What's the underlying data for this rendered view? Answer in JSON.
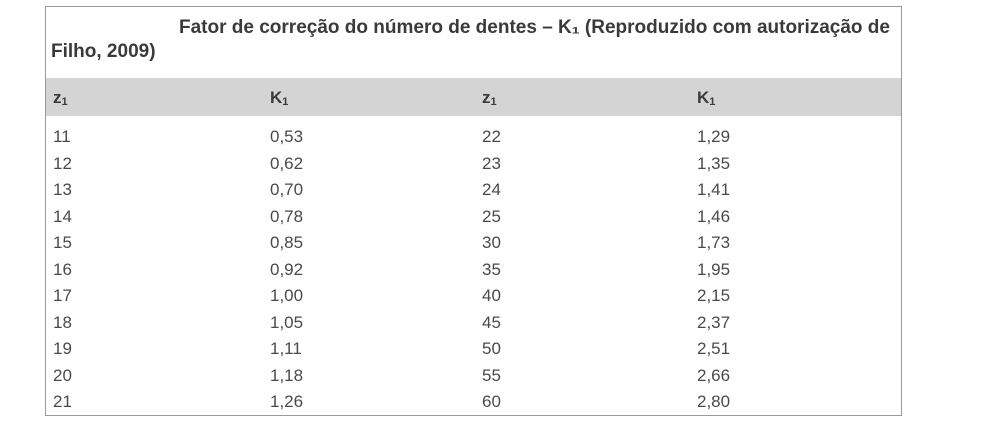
{
  "table": {
    "caption": "Fator de correção do número de dentes – K₁ (Reproduzido com autorização de Filho, 2009)",
    "headers": [
      {
        "base": "z",
        "sub": "1"
      },
      {
        "base": "K",
        "sub": "1"
      },
      {
        "base": "z",
        "sub": "1"
      },
      {
        "base": "K",
        "sub": "1"
      }
    ],
    "rows": [
      [
        "11",
        "0,53",
        "22",
        "1,29"
      ],
      [
        "12",
        "0,62",
        "23",
        "1,35"
      ],
      [
        "13",
        "0,70",
        "24",
        "1,41"
      ],
      [
        "14",
        "0,78",
        "25",
        "1,46"
      ],
      [
        "15",
        "0,85",
        "30",
        "1,73"
      ],
      [
        "16",
        "0,92",
        "35",
        "1,95"
      ],
      [
        "17",
        "1,00",
        "40",
        "2,15"
      ],
      [
        "18",
        "1,05",
        "45",
        "2,37"
      ],
      [
        "19",
        "1,11",
        "50",
        "2,51"
      ],
      [
        "20",
        "1,18",
        "55",
        "2,66"
      ],
      [
        "21",
        "1,26",
        "60",
        "2,80"
      ]
    ]
  }
}
